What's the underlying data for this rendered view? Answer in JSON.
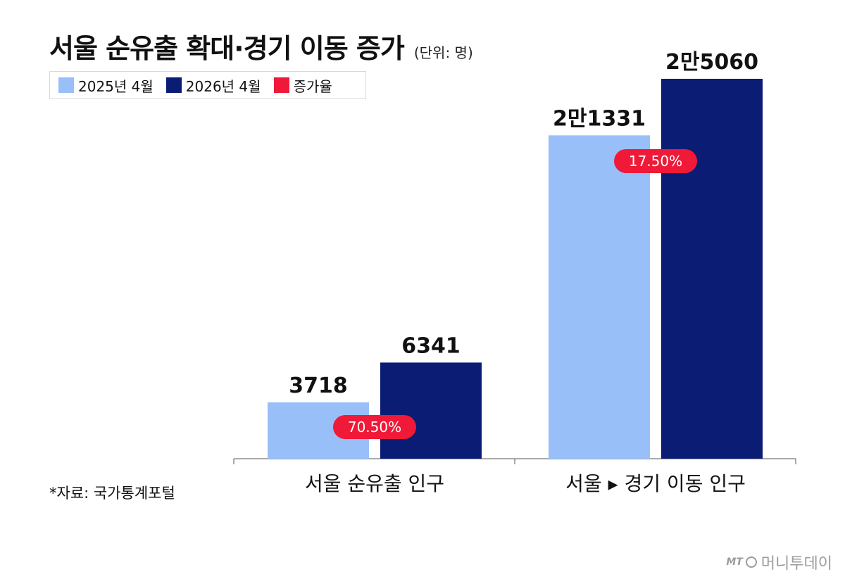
{
  "title": "서울 순유출 확대·경기 이동 증가",
  "unit": "(단위: 명)",
  "legend": [
    {
      "label": "2025년 4월",
      "color": "#99bff9"
    },
    {
      "label": "2026년 4월",
      "color": "#0a1c73"
    },
    {
      "label": "증가율",
      "color": "#f01938"
    }
  ],
  "source": "*자료: 국가통계포털",
  "brand": {
    "mark": "MT",
    "name": "머니투데이"
  },
  "chart_data": {
    "type": "bar",
    "categories": [
      "서울 순유출 인구",
      "서울 ▸ 경기 이동 인구"
    ],
    "series": [
      {
        "name": "2025년 4월",
        "values": [
          3718,
          21331
        ],
        "labels": [
          "3718",
          "2만1331"
        ],
        "color": "#99bff9"
      },
      {
        "name": "2026년 4월",
        "values": [
          6341,
          25060
        ],
        "labels": [
          "6341",
          "2만5060"
        ],
        "color": "#0a1c73"
      }
    ],
    "growth_rate": {
      "name": "증가율",
      "values": [
        "70.50%",
        "17.50%"
      ],
      "color": "#f01938"
    },
    "ylim": [
      0,
      25060
    ],
    "grid": false,
    "legend_position": "top-left"
  }
}
